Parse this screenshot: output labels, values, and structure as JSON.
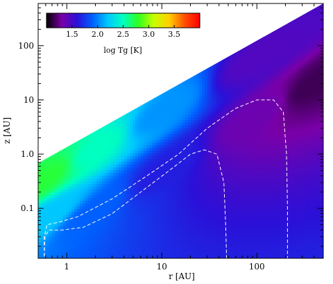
{
  "chart_data": {
    "type": "heatmap",
    "xlabel": "r [AU]",
    "ylabel": "z [AU]",
    "x_scale": "log",
    "y_scale": "log",
    "xlim": [
      0.5,
      500
    ],
    "ylim": [
      0.012,
      600
    ],
    "x_ticks": [
      {
        "value": 1,
        "label": "1"
      },
      {
        "value": 10,
        "label": "10"
      },
      {
        "value": 100,
        "label": "100"
      }
    ],
    "y_ticks": [
      {
        "value": 0.1,
        "label": "0.1"
      },
      {
        "value": 1,
        "label": "1.0"
      },
      {
        "value": 10,
        "label": "10"
      },
      {
        "value": 100,
        "label": "100"
      }
    ],
    "colorbar": {
      "label": "log Tg [K]",
      "range": [
        1.0,
        4.0
      ],
      "ticks": [
        {
          "value": 1.5,
          "label": "1.5"
        },
        {
          "value": 2.0,
          "label": "2.0"
        },
        {
          "value": 2.5,
          "label": "2.5"
        },
        {
          "value": 3.0,
          "label": "3.0"
        },
        {
          "value": 3.5,
          "label": "3.5"
        }
      ],
      "colormap": [
        "#000000",
        "#7a00a8",
        "#2a10d8",
        "#0060ff",
        "#00c8ff",
        "#00ffc0",
        "#30ff20",
        "#c8ff00",
        "#ffd000",
        "#ff5000",
        "#ff0000"
      ]
    },
    "surface_boundary": [
      [
        0.5,
        0.6
      ],
      [
        500,
        600
      ]
    ],
    "field_samples": [
      {
        "r": 0.6,
        "z_over_r": 0.1,
        "logTg": 2.2
      },
      {
        "r": 0.6,
        "z_over_r": 0.6,
        "logTg": 2.75
      },
      {
        "r": 2,
        "z_over_r": 0.05,
        "logTg": 1.9
      },
      {
        "r": 2,
        "z_over_r": 0.6,
        "logTg": 2.5
      },
      {
        "r": 10,
        "z_over_r": 0.05,
        "logTg": 1.65
      },
      {
        "r": 10,
        "z_over_r": 0.6,
        "logTg": 2.05
      },
      {
        "r": 100,
        "z_over_r": 0.05,
        "logTg": 1.35
      },
      {
        "r": 100,
        "z_over_r": 0.6,
        "logTg": 1.45
      },
      {
        "r": 400,
        "z_over_r": 0.05,
        "logTg": 1.15
      }
    ],
    "contours": [
      {
        "style": "dashed",
        "color": "#ffffff",
        "points": [
          [
            0.58,
            0.013
          ],
          [
            0.58,
            0.03
          ],
          [
            0.62,
            0.05
          ],
          [
            0.8,
            0.055
          ],
          [
            1.3,
            0.07
          ],
          [
            3,
            0.15
          ],
          [
            7,
            0.4
          ],
          [
            15,
            1.0
          ],
          [
            30,
            3
          ],
          [
            60,
            7
          ],
          [
            100,
            10
          ],
          [
            150,
            10
          ],
          [
            190,
            6
          ],
          [
            205,
            1
          ],
          [
            210,
            0.1
          ],
          [
            210,
            0.012
          ]
        ]
      },
      {
        "style": "dashed",
        "color": "#ffffff",
        "points": [
          [
            0.58,
            0.013
          ],
          [
            0.59,
            0.03
          ],
          [
            0.65,
            0.04
          ],
          [
            0.9,
            0.04
          ],
          [
            1.5,
            0.045
          ],
          [
            3,
            0.08
          ],
          [
            6,
            0.2
          ],
          [
            12,
            0.5
          ],
          [
            20,
            1.0
          ],
          [
            28,
            1.2
          ],
          [
            38,
            1.0
          ],
          [
            45,
            0.3
          ],
          [
            47,
            0.05
          ],
          [
            48,
            0.012
          ]
        ]
      }
    ]
  }
}
